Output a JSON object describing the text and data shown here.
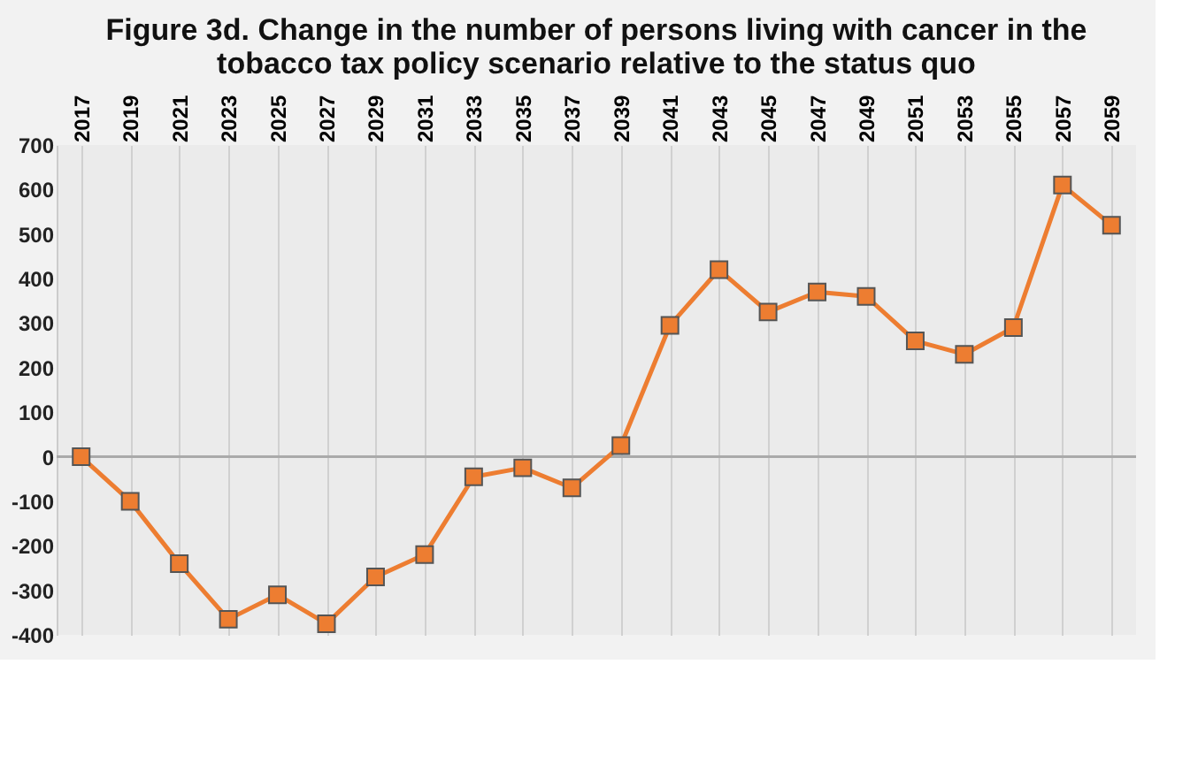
{
  "chart_data": {
    "type": "line",
    "title": [
      "Figure 3d. Change in the number of persons living with cancer in the",
      "tobacco tax policy scenario relative to the status quo"
    ],
    "categories": [
      "2017",
      "2019",
      "2021",
      "2023",
      "2025",
      "2027",
      "2029",
      "2031",
      "2033",
      "2035",
      "2037",
      "2039",
      "2041",
      "2043",
      "2045",
      "2047",
      "2049",
      "2051",
      "2053",
      "2055",
      "2057",
      "2059"
    ],
    "series": [
      {
        "color": "#ed7d31",
        "values": [
          0,
          -100,
          -240,
          -365,
          -310,
          -375,
          -270,
          -220,
          -45,
          -25,
          -70,
          25,
          295,
          420,
          325,
          370,
          360,
          260,
          230,
          290,
          610,
          520
        ]
      }
    ],
    "ylim": [
      -400,
      700
    ],
    "yticks": [
      -400,
      -300,
      -200,
      -100,
      0,
      100,
      200,
      300,
      400,
      500,
      600,
      700
    ],
    "ref_lines": [
      {
        "axis": "y",
        "value": 0,
        "color": "#aaaaaa"
      }
    ],
    "grid": "x",
    "marker": "square",
    "line_style": "solid"
  }
}
